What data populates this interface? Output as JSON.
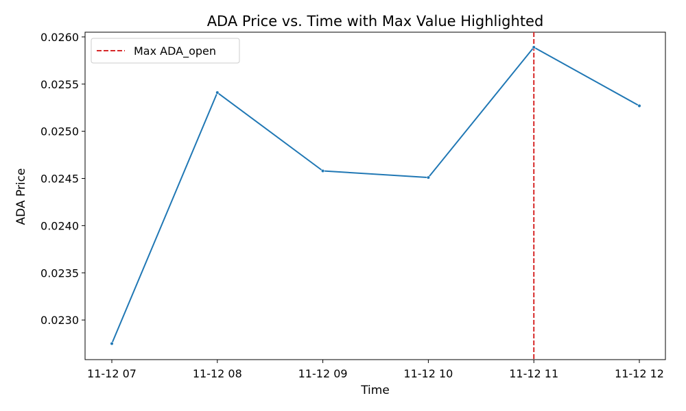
{
  "chart_data": {
    "type": "line",
    "title": "ADA Price vs. Time with Max Value Highlighted",
    "xlabel": "Time",
    "ylabel": "ADA Price",
    "x": [
      "11-12 07",
      "11-12 08",
      "11-12 09",
      "11-12 10",
      "11-12 11",
      "11-12 12"
    ],
    "series": [
      {
        "name": "",
        "values": [
          0.02275,
          0.02541,
          0.02458,
          0.02451,
          0.02589,
          0.02527
        ],
        "color": "#1f77b4"
      }
    ],
    "y_ticks": [
      "0.0230",
      "0.0235",
      "0.0240",
      "0.0245",
      "0.0250",
      "0.0255",
      "0.0260"
    ],
    "ylim": [
      0.02258,
      0.02605
    ],
    "grid": false,
    "reference_line": {
      "orientation": "vertical",
      "x": "11-12 11",
      "style": "dashed",
      "color": "#d62728",
      "label": "Max ADA_open"
    },
    "legend": {
      "placement": "top-left",
      "entries": [
        "Max ADA_open"
      ]
    }
  }
}
